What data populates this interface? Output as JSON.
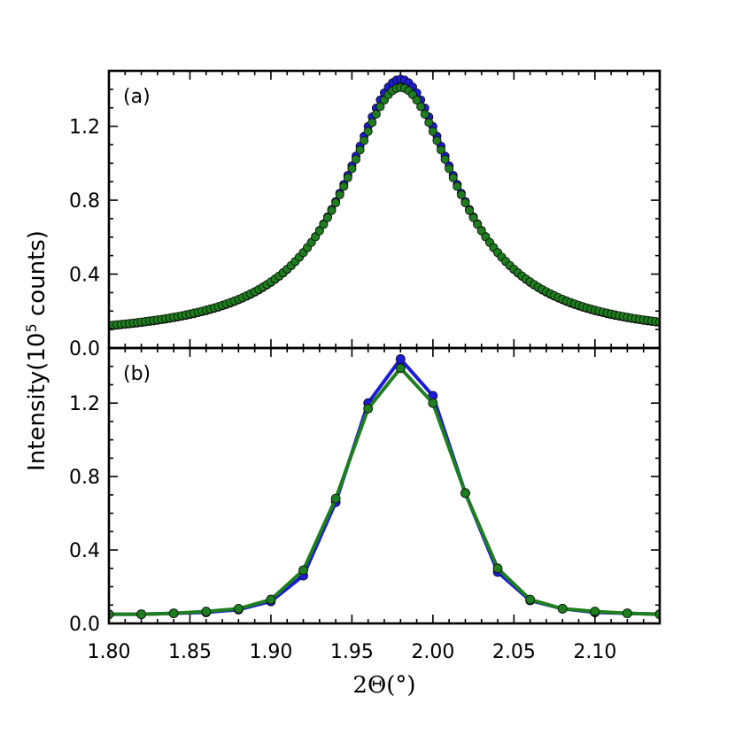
{
  "chart_data": [
    {
      "type": "scatter",
      "panel_label": "(a)",
      "xlim": [
        1.8,
        2.14
      ],
      "ylim": [
        0.0,
        1.5
      ],
      "yticks": [
        "0.0",
        "0.4",
        "0.8",
        "1.2"
      ],
      "series": [
        {
          "color": "#1c1cd8",
          "kind": "markers",
          "peak": {
            "center": 1.98,
            "height": 1.455,
            "fwhm": 0.085,
            "baseline": 0.045
          }
        },
        {
          "color": "#1e7d1e",
          "kind": "markers",
          "peak": {
            "center": 1.98,
            "height": 1.41,
            "fwhm": 0.087,
            "baseline": 0.047
          }
        }
      ]
    },
    {
      "type": "line",
      "panel_label": "(b)",
      "xlim": [
        1.8,
        2.14
      ],
      "ylim": [
        0.0,
        1.5
      ],
      "yticks": [
        "0.0",
        "0.4",
        "0.8",
        "1.2"
      ],
      "x": [
        1.8,
        1.82,
        1.84,
        1.86,
        1.88,
        1.9,
        1.92,
        1.94,
        1.96,
        1.98,
        2.0,
        2.02,
        2.04,
        2.06,
        2.08,
        2.1,
        2.12,
        2.14
      ],
      "series": [
        {
          "color": "#1c1cd8",
          "values": [
            0.05,
            0.05,
            0.055,
            0.06,
            0.075,
            0.12,
            0.26,
            0.66,
            1.2,
            1.44,
            1.24,
            0.71,
            0.28,
            0.125,
            0.08,
            0.06,
            0.055,
            0.05
          ]
        },
        {
          "color": "#1e7d1e",
          "values": [
            0.05,
            0.05,
            0.055,
            0.065,
            0.08,
            0.13,
            0.29,
            0.68,
            1.17,
            1.39,
            1.2,
            0.71,
            0.3,
            0.13,
            0.08,
            0.065,
            0.055,
            0.05
          ]
        }
      ]
    }
  ],
  "x_axis": {
    "ticks": [
      "1.80",
      "1.85",
      "1.90",
      "1.95",
      "2.00",
      "2.05",
      "2.10"
    ],
    "tick_values": [
      1.8,
      1.85,
      1.9,
      1.95,
      2.0,
      2.05,
      2.1
    ],
    "label": "2Θ(°)"
  },
  "y_axis": {
    "label_main": "Intensity(10",
    "label_sup": "5",
    "label_end": " counts)"
  }
}
